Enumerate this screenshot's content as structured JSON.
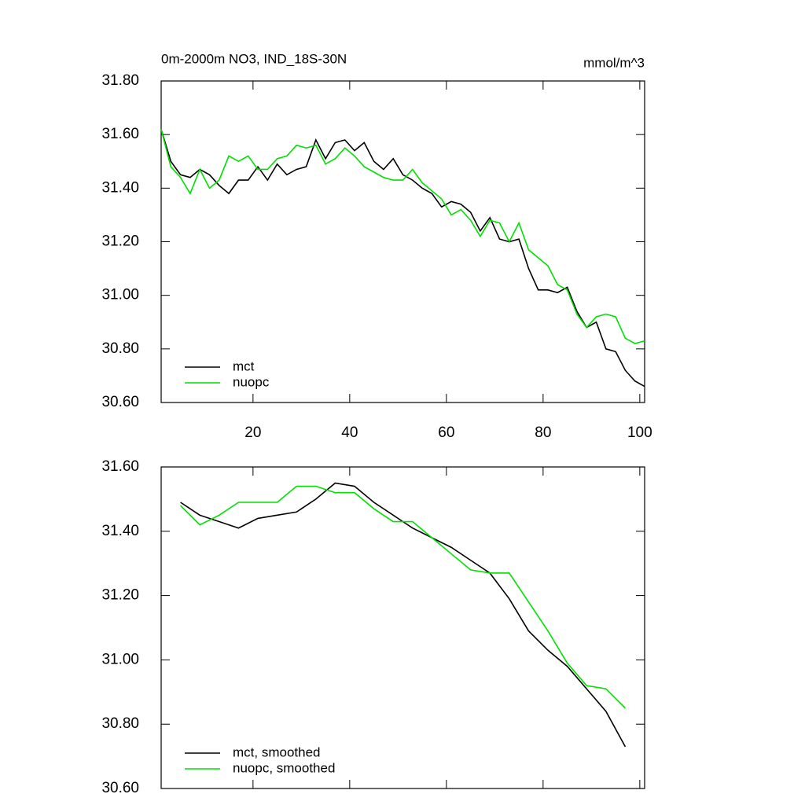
{
  "chart_data": [
    {
      "type": "line",
      "title": "0m-2000m NO3, IND_18S-30N",
      "units": "mmol/m^3",
      "x": [
        1,
        3,
        5,
        7,
        9,
        11,
        13,
        15,
        17,
        19,
        21,
        23,
        25,
        27,
        29,
        31,
        33,
        35,
        37,
        39,
        41,
        43,
        45,
        47,
        49,
        51,
        53,
        55,
        57,
        59,
        61,
        63,
        65,
        67,
        69,
        71,
        73,
        75,
        77,
        79,
        81,
        83,
        85,
        87,
        89,
        91,
        93,
        95,
        97,
        99,
        101
      ],
      "series": [
        {
          "name": "mct",
          "color": "#000000",
          "values": [
            31.62,
            31.5,
            31.45,
            31.44,
            31.47,
            31.45,
            31.41,
            31.38,
            31.43,
            31.43,
            31.48,
            31.43,
            31.49,
            31.45,
            31.47,
            31.48,
            31.58,
            31.51,
            31.57,
            31.58,
            31.54,
            31.57,
            31.5,
            31.47,
            31.51,
            31.45,
            31.43,
            31.4,
            31.38,
            31.33,
            31.35,
            31.34,
            31.31,
            31.24,
            31.29,
            31.21,
            31.2,
            31.21,
            31.1,
            31.02,
            31.02,
            31.01,
            31.03,
            30.94,
            30.88,
            30.9,
            30.8,
            30.79,
            30.72,
            30.68,
            30.66
          ]
        },
        {
          "name": "nuopc",
          "color": "#00e000",
          "values": [
            31.62,
            31.48,
            31.44,
            31.38,
            31.47,
            31.4,
            31.43,
            31.52,
            31.5,
            31.52,
            31.47,
            31.47,
            31.51,
            31.52,
            31.56,
            31.55,
            31.56,
            31.49,
            31.51,
            31.55,
            31.52,
            31.48,
            31.46,
            31.44,
            31.43,
            31.43,
            31.47,
            31.42,
            31.39,
            31.36,
            31.3,
            31.32,
            31.28,
            31.22,
            31.28,
            31.27,
            31.2,
            31.27,
            31.17,
            31.14,
            31.11,
            31.04,
            31.02,
            30.93,
            30.88,
            30.92,
            30.93,
            30.92,
            30.84,
            30.82,
            30.83
          ]
        }
      ],
      "xlim": [
        1,
        101
      ],
      "xticks": [
        20,
        40,
        60,
        80,
        100
      ],
      "ylim": [
        30.6,
        31.8
      ],
      "yticks": [
        {
          "value": 30.6,
          "label": "30.60"
        },
        {
          "value": 30.8,
          "label": "30.80"
        },
        {
          "value": 31.0,
          "label": "31.00"
        },
        {
          "value": 31.2,
          "label": "31.20"
        },
        {
          "value": 31.4,
          "label": "31.40"
        },
        {
          "value": 31.6,
          "label": "31.60"
        },
        {
          "value": 31.8,
          "label": "31.80"
        }
      ],
      "legend": "lower left"
    },
    {
      "type": "line",
      "x": [
        5,
        9,
        13,
        17,
        21,
        25,
        29,
        33,
        37,
        41,
        45,
        49,
        53,
        57,
        61,
        65,
        69,
        73,
        77,
        81,
        85,
        89,
        93,
        97
      ],
      "series": [
        {
          "name": "mct, smoothed",
          "color": "#000000",
          "values": [
            31.49,
            31.45,
            31.43,
            31.41,
            31.44,
            31.45,
            31.46,
            31.5,
            31.55,
            31.54,
            31.49,
            31.45,
            31.41,
            31.38,
            31.35,
            31.31,
            31.27,
            31.19,
            31.09,
            31.03,
            30.98,
            30.91,
            30.84,
            30.73
          ]
        },
        {
          "name": "nuopc, smoothed",
          "color": "#00e000",
          "values": [
            31.48,
            31.42,
            31.45,
            31.49,
            31.49,
            31.49,
            31.54,
            31.54,
            31.52,
            31.52,
            31.47,
            31.43,
            31.43,
            31.38,
            31.33,
            31.28,
            31.27,
            31.27,
            31.18,
            31.09,
            30.99,
            30.92,
            30.91,
            30.85
          ]
        }
      ],
      "xlim": [
        1,
        101
      ],
      "xticks": [
        20,
        40,
        60,
        80,
        100
      ],
      "ylim": [
        30.6,
        31.6
      ],
      "yticks": [
        {
          "value": 30.6,
          "label": "30.60"
        },
        {
          "value": 30.8,
          "label": "30.80"
        },
        {
          "value": 31.0,
          "label": "31.00"
        },
        {
          "value": 31.2,
          "label": "31.20"
        },
        {
          "value": 31.4,
          "label": "31.40"
        },
        {
          "value": 31.6,
          "label": "31.60"
        }
      ],
      "legend": "lower left"
    }
  ]
}
